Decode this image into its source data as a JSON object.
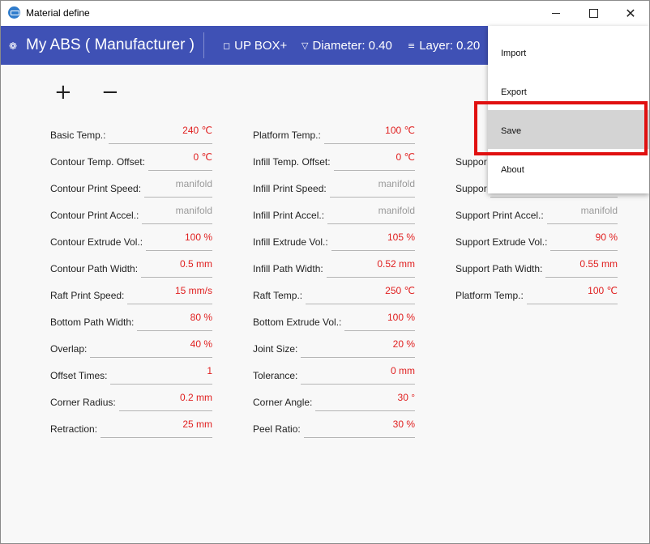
{
  "window": {
    "title": "Material define",
    "controls": {
      "minimize": "",
      "maximize": "",
      "close": "✕"
    }
  },
  "header": {
    "profile_name": "My ABS ( Manufacturer )",
    "printer": "UP BOX+",
    "diameter": "Diameter: 0.40",
    "layer": "Layer: 0.20"
  },
  "toolbar": {
    "add_label": "+",
    "remove_label": "−"
  },
  "menu": {
    "items": [
      {
        "label": "Import"
      },
      {
        "label": "Export"
      },
      {
        "label": "Save"
      },
      {
        "label": "About"
      }
    ]
  },
  "form": {
    "col1": [
      {
        "label": "Basic Temp.:",
        "value": "240 ℃"
      },
      {
        "label": "Contour Temp. Offset:",
        "value": "0 ℃"
      },
      {
        "label": "Contour Print Speed:",
        "placeholder": "manifold"
      },
      {
        "label": "Contour Print Accel.:",
        "placeholder": "manifold"
      },
      {
        "label": "Contour Extrude Vol.:",
        "value": "100 %"
      },
      {
        "label": "Contour Path Width:",
        "value": "0.5 mm"
      },
      {
        "label": "Raft Print Speed:",
        "value": "15 mm/s"
      },
      {
        "label": "Bottom Path Width:",
        "value": "80 %"
      },
      {
        "label": "Overlap:",
        "value": "40 %"
      },
      {
        "label": "Offset Times:",
        "value": "1"
      },
      {
        "label": "Corner Radius:",
        "value": "0.2 mm"
      },
      {
        "label": "Retraction:",
        "value": "25 mm"
      }
    ],
    "col2": [
      {
        "label": "Platform Temp.:",
        "value": "100 ℃"
      },
      {
        "label": "Infill Temp. Offset:",
        "value": "0 ℃"
      },
      {
        "label": "Infill Print Speed:",
        "placeholder": "manifold"
      },
      {
        "label": "Infill Print Accel.:",
        "placeholder": "manifold"
      },
      {
        "label": "Infill Extrude Vol.:",
        "value": "105 %"
      },
      {
        "label": "Infill Path Width:",
        "value": "0.52 mm"
      },
      {
        "label": "Raft Temp.:",
        "value": "250 ℃"
      },
      {
        "label": "Bottom Extrude Vol.:",
        "value": "100 %"
      },
      {
        "label": "Joint Size:",
        "value": "20 %"
      },
      {
        "label": "Tolerance:",
        "value": "0 mm"
      },
      {
        "label": "Corner Angle:",
        "value": "30 °"
      },
      {
        "label": "Peel Ratio:",
        "value": "30 %"
      }
    ],
    "col3": [
      {
        "label": "Suppor",
        "value": ""
      },
      {
        "label": "Suppor",
        "value": ""
      },
      {
        "label": "Support Print Accel.:",
        "placeholder": "manifold"
      },
      {
        "label": "Support Extrude Vol.:",
        "value": "90 %"
      },
      {
        "label": "Support Path Width:",
        "value": "0.55 mm"
      },
      {
        "label": "Platform Temp.:",
        "value": "100 ℃"
      }
    ]
  },
  "colors": {
    "header_bg": "#3f51b5",
    "value_text": "#e02020",
    "placeholder_text": "#9a9a9a",
    "highlight": "#e01010"
  }
}
